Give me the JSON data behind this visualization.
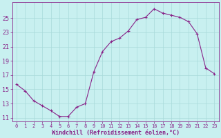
{
  "x": [
    0,
    1,
    2,
    3,
    4,
    5,
    6,
    7,
    8,
    9,
    10,
    11,
    12,
    13,
    14,
    15,
    16,
    17,
    18,
    19,
    20,
    21,
    22,
    23
  ],
  "y": [
    15.7,
    14.8,
    13.4,
    12.7,
    12.0,
    11.2,
    11.2,
    12.5,
    13.0,
    17.5,
    20.3,
    21.7,
    22.2,
    23.2,
    24.8,
    25.1,
    26.3,
    25.7,
    25.4,
    25.1,
    24.5,
    22.8,
    18.0,
    17.2
  ],
  "line_color": "#882288",
  "marker": "+",
  "bg_color": "#c8f0f0",
  "grid_color": "#a8dada",
  "tick_color": "#882288",
  "xlabel": "Windchill (Refroidissement éolien,°C)",
  "xlabel_color": "#882288",
  "ylim": [
    10.5,
    27.2
  ],
  "xlim": [
    -0.5,
    23.5
  ],
  "yticks": [
    11,
    13,
    15,
    17,
    19,
    21,
    23,
    25
  ],
  "xticks": [
    0,
    1,
    2,
    3,
    4,
    5,
    6,
    7,
    8,
    9,
    10,
    11,
    12,
    13,
    14,
    15,
    16,
    17,
    18,
    19,
    20,
    21,
    22,
    23
  ],
  "figsize": [
    3.2,
    2.0
  ],
  "dpi": 100
}
